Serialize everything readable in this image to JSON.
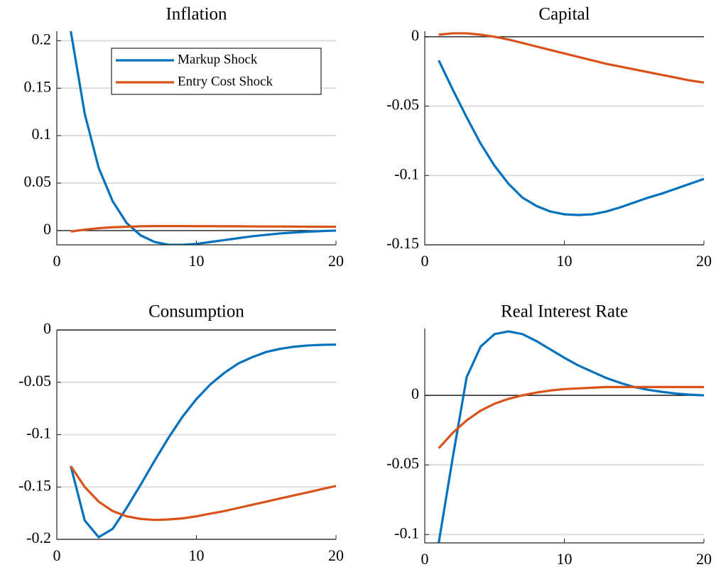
{
  "chart_data": [
    {
      "type": "line",
      "title": "Inflation",
      "x": [
        1,
        2,
        3,
        4,
        5,
        6,
        7,
        8,
        9,
        10,
        11,
        12,
        13,
        14,
        15,
        16,
        17,
        18,
        19,
        20
      ],
      "xlim": [
        0,
        20
      ],
      "xticks": [
        0,
        10,
        20
      ],
      "ylim": [
        -0.015,
        0.21
      ],
      "yticks": [
        0,
        0.05,
        0.1,
        0.15,
        0.2
      ],
      "grid": true,
      "hline": 0,
      "legend": "upper right",
      "series": [
        {
          "name": "Markup Shock",
          "color": "#0072BD",
          "values": [
            0.21,
            0.123,
            0.066,
            0.031,
            0.008,
            -0.005,
            -0.012,
            -0.015,
            -0.015,
            -0.014,
            -0.012,
            -0.01,
            -0.008,
            -0.006,
            -0.0045,
            -0.003,
            -0.002,
            -0.0012,
            -0.0005,
            0
          ]
        },
        {
          "name": "Entry Cost Shock",
          "color": "#D95319",
          "values": [
            -0.001,
            0.001,
            0.0025,
            0.0035,
            0.004,
            0.0045,
            0.0047,
            0.0047,
            0.0047,
            0.0046,
            0.0046,
            0.0045,
            0.0045,
            0.0044,
            0.0043,
            0.0043,
            0.0042,
            0.0041,
            0.0041,
            0.004
          ]
        }
      ]
    },
    {
      "type": "line",
      "title": "Capital",
      "x": [
        1,
        2,
        3,
        4,
        5,
        6,
        7,
        8,
        9,
        10,
        11,
        12,
        13,
        14,
        15,
        16,
        17,
        18,
        19,
        20
      ],
      "xlim": [
        0,
        20
      ],
      "xticks": [
        0,
        10,
        20
      ],
      "ylim": [
        -0.15,
        0.004
      ],
      "yticks": [
        -0.15,
        -0.1,
        -0.05,
        0
      ],
      "grid": true,
      "hline": 0,
      "series": [
        {
          "color": "#0072BD",
          "values": [
            -0.017,
            -0.038,
            -0.058,
            -0.077,
            -0.093,
            -0.106,
            -0.116,
            -0.122,
            -0.126,
            -0.128,
            -0.1285,
            -0.128,
            -0.126,
            -0.123,
            -0.1195,
            -0.116,
            -0.113,
            -0.1095,
            -0.106,
            -0.1025
          ]
        },
        {
          "color": "#D95319",
          "values": [
            0.0015,
            0.0025,
            0.0025,
            0.0015,
            0,
            -0.002,
            -0.0045,
            -0.007,
            -0.0095,
            -0.012,
            -0.0145,
            -0.017,
            -0.0195,
            -0.0215,
            -0.0235,
            -0.0255,
            -0.0275,
            -0.0295,
            -0.0315,
            -0.033
          ]
        }
      ]
    },
    {
      "type": "line",
      "title": "Consumption",
      "x": [
        1,
        2,
        3,
        4,
        5,
        6,
        7,
        8,
        9,
        10,
        11,
        12,
        13,
        14,
        15,
        16,
        17,
        18,
        19,
        20
      ],
      "xlim": [
        0,
        20
      ],
      "xticks": [
        0,
        10,
        20
      ],
      "ylim": [
        -0.2,
        0
      ],
      "yticks": [
        -0.2,
        -0.15,
        -0.1,
        -0.05,
        0
      ],
      "grid": true,
      "hline": 0,
      "series": [
        {
          "color": "#0072BD",
          "values": [
            -0.13,
            -0.182,
            -0.198,
            -0.19,
            -0.17,
            -0.148,
            -0.125,
            -0.103,
            -0.083,
            -0.066,
            -0.052,
            -0.041,
            -0.032,
            -0.026,
            -0.021,
            -0.018,
            -0.016,
            -0.0148,
            -0.0142,
            -0.014
          ]
        },
        {
          "color": "#D95319",
          "values": [
            -0.13,
            -0.15,
            -0.164,
            -0.173,
            -0.178,
            -0.1805,
            -0.1815,
            -0.181,
            -0.18,
            -0.178,
            -0.1755,
            -0.173,
            -0.17,
            -0.167,
            -0.164,
            -0.161,
            -0.158,
            -0.155,
            -0.152,
            -0.149
          ]
        }
      ]
    },
    {
      "type": "line",
      "title": "Real Interest Rate",
      "x": [
        1,
        2,
        3,
        4,
        5,
        6,
        7,
        8,
        9,
        10,
        11,
        12,
        13,
        14,
        15,
        16,
        17,
        18,
        19,
        20
      ],
      "xlim": [
        0,
        20
      ],
      "xticks": [
        0,
        10,
        20
      ],
      "ylim": [
        -0.106,
        0.048
      ],
      "yticks": [
        -0.1,
        -0.05,
        0
      ],
      "grid": true,
      "hline": 0,
      "series": [
        {
          "color": "#0072BD",
          "values": [
            -0.106,
            -0.045,
            0.013,
            0.035,
            0.044,
            0.046,
            0.044,
            0.039,
            0.033,
            0.027,
            0.0215,
            0.017,
            0.0125,
            0.009,
            0.006,
            0.004,
            0.0025,
            0.0013,
            0.0005,
            0
          ]
        },
        {
          "color": "#D95319",
          "values": [
            -0.038,
            -0.027,
            -0.018,
            -0.011,
            -0.006,
            -0.0025,
            0,
            0.002,
            0.0035,
            0.0045,
            0.005,
            0.0055,
            0.006,
            0.006,
            0.006,
            0.006,
            0.006,
            0.006,
            0.006,
            0.006
          ]
        }
      ]
    }
  ]
}
